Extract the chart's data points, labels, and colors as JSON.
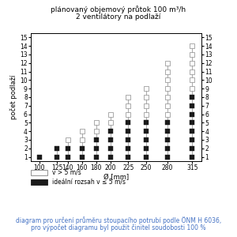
{
  "title_line1": "plánovaný objemový průtok 100 m³/h",
  "title_line2": "2 ventilátory na podlaží",
  "xlabel": "Ø [mm]",
  "ylabel": "počet podlaží",
  "diameters": [
    100,
    125,
    140,
    160,
    180,
    200,
    225,
    250,
    280,
    315
  ],
  "max_floors": [
    1,
    2,
    3,
    4,
    5,
    6,
    8,
    9,
    12,
    14
  ],
  "black_floors": [
    1,
    2,
    2,
    2,
    3,
    4,
    5,
    5,
    5,
    8
  ],
  "ylim": [
    0.5,
    15.5
  ],
  "yticks": [
    1,
    2,
    3,
    4,
    5,
    6,
    7,
    8,
    9,
    10,
    11,
    12,
    13,
    14,
    15
  ],
  "xticks": [
    100,
    125,
    140,
    160,
    180,
    200,
    225,
    250,
    280,
    315
  ],
  "legend_white": "v > 5 m/s",
  "legend_black": "ideální rozsah v ≤ 5 m/s",
  "footer_line1": "diagram pro určení průměru stoupacího potrubí podle ÖNM H 6036,",
  "footer_line2": "pro výpočet diagramu byl použit činitel soudobosti 100 %",
  "marker_size": 4.0,
  "white_color": "#cccccc",
  "black_color": "#1a1a1a",
  "line_color": "#aaaaaa",
  "footer_color": "#4472c4",
  "bg_color": "#ffffff",
  "axis_label_fontsize": 6,
  "tick_fontsize": 5.5,
  "title_fontsize": 6.5,
  "footer_fontsize": 5.5
}
